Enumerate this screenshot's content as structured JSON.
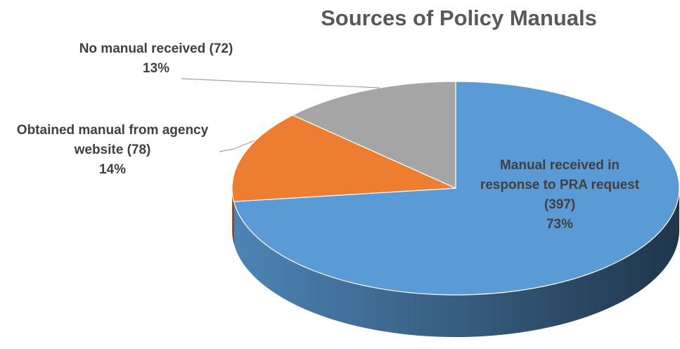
{
  "chart_data": {
    "type": "pie3d",
    "title": "Sources of Policy Manuals",
    "categories": [
      "Manual received in response to PRA request (397)",
      "Obtained manual from agency website (78)",
      "No manual received (72)"
    ],
    "values": [
      73,
      14,
      13
    ],
    "value_labels": [
      "73%",
      "14%",
      "13%"
    ],
    "colors": [
      "#5b9bd5",
      "#ed7d31",
      "#a5a5a5"
    ]
  }
}
